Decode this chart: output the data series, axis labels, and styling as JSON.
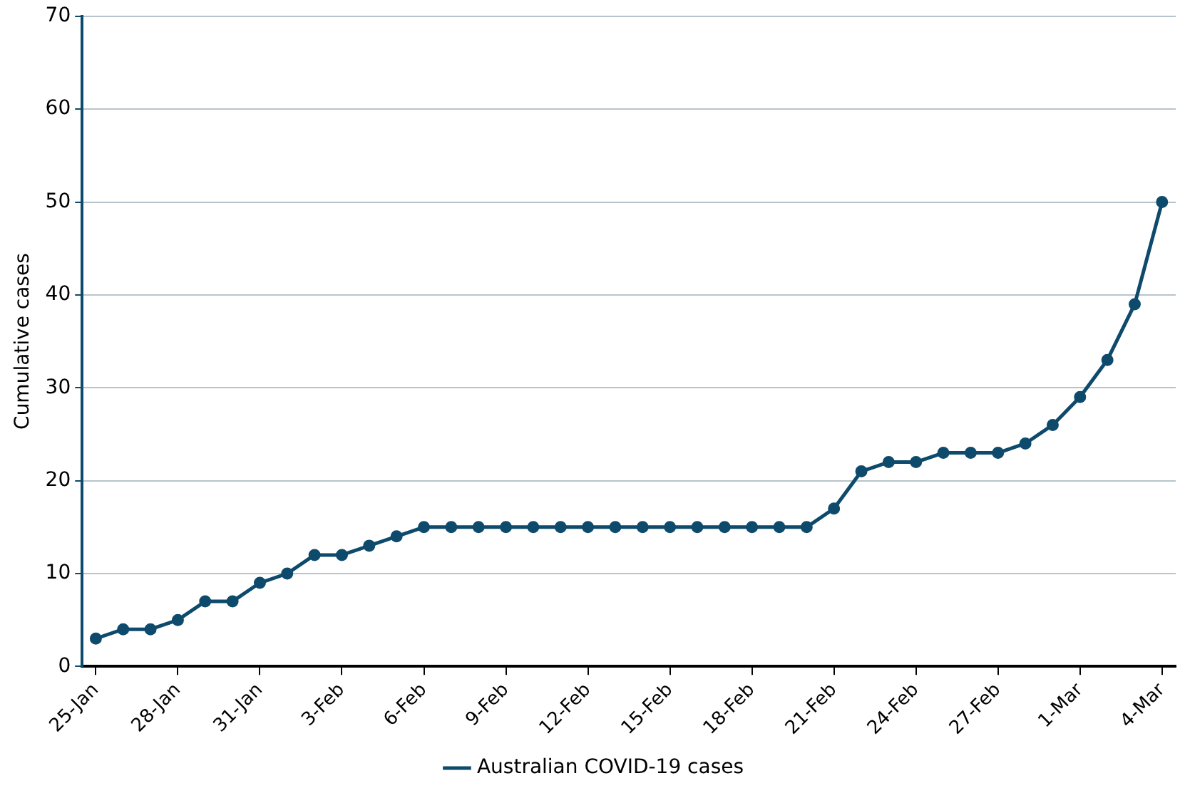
{
  "chart_data": {
    "type": "line",
    "ylabel": "Cumulative cases",
    "categories": [
      "25-Jan",
      null,
      null,
      "28-Jan",
      null,
      null,
      "31-Jan",
      null,
      null,
      "3-Feb",
      null,
      null,
      "6-Feb",
      null,
      null,
      "9-Feb",
      null,
      null,
      "12-Feb",
      null,
      null,
      "15-Feb",
      null,
      null,
      "18-Feb",
      null,
      null,
      "21-Feb",
      null,
      null,
      "24-Feb",
      null,
      null,
      "27-Feb",
      null,
      null,
      "1-Mar",
      null,
      null,
      "4-Mar"
    ],
    "series": [
      {
        "name": "Australian COVID-19 cases",
        "color": "#0d4a6b",
        "values": [
          3,
          4,
          4,
          5,
          7,
          7,
          9,
          10,
          12,
          12,
          13,
          14,
          15,
          15,
          15,
          15,
          15,
          15,
          15,
          15,
          15,
          15,
          15,
          15,
          15,
          15,
          15,
          17,
          21,
          22,
          22,
          23,
          23,
          23,
          24,
          26,
          29,
          33,
          39,
          50
        ]
      }
    ],
    "ylim": [
      0,
      70
    ],
    "yticks": [
      0,
      10,
      20,
      30,
      40,
      50,
      60,
      70
    ],
    "grid": "y",
    "legend": "bottom",
    "marker": "circle",
    "line_style": "solid"
  }
}
